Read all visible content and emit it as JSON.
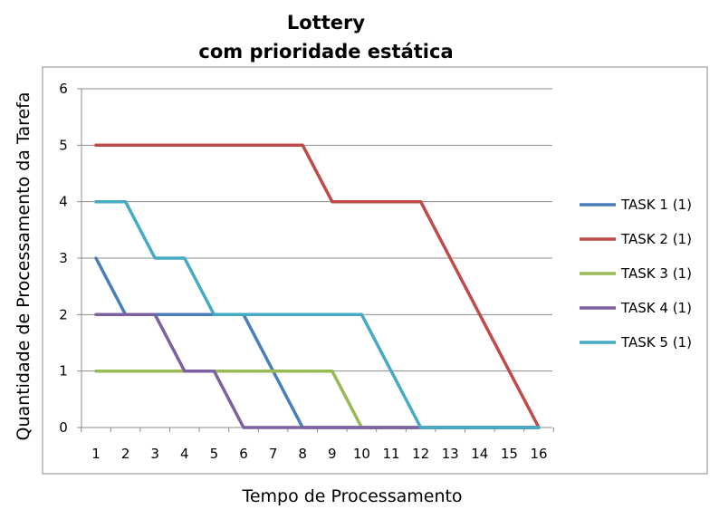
{
  "chart_data": {
    "type": "line",
    "title": "Lottery",
    "subtitle": "com prioridade estática",
    "xlabel": "Tempo de Processamento",
    "ylabel": "Quantidade de Processamento da Tarefa",
    "x": [
      1,
      2,
      3,
      4,
      5,
      6,
      7,
      8,
      9,
      10,
      11,
      12,
      13,
      14,
      15,
      16
    ],
    "xlim": [
      0.5,
      16.5
    ],
    "ylim": [
      0,
      6
    ],
    "yticks": [
      0,
      1,
      2,
      3,
      4,
      5,
      6
    ],
    "grid": true,
    "legend_position": "right",
    "series": [
      {
        "name": "TASK 1 (1)",
        "color": "#4a7ebb",
        "values": [
          3,
          2,
          2,
          2,
          2,
          2,
          1,
          0,
          0,
          0,
          0,
          0,
          0,
          0,
          0,
          0
        ]
      },
      {
        "name": "TASK 2 (1)",
        "color": "#be4b48",
        "values": [
          5,
          5,
          5,
          5,
          5,
          5,
          5,
          5,
          4,
          4,
          4,
          4,
          3,
          2,
          1,
          0
        ]
      },
      {
        "name": "TASK 3 (1)",
        "color": "#98b954",
        "values": [
          1,
          1,
          1,
          1,
          1,
          1,
          1,
          1,
          1,
          0,
          0,
          0,
          0,
          0,
          0,
          0
        ]
      },
      {
        "name": "TASK 4 (1)",
        "color": "#7d60a0",
        "values": [
          2,
          2,
          2,
          1,
          1,
          0,
          0,
          0,
          0,
          0,
          0,
          0,
          0,
          0,
          0,
          0
        ]
      },
      {
        "name": "TASK 5 (1)",
        "color": "#46aac5",
        "values": [
          4,
          4,
          3,
          3,
          2,
          2,
          2,
          2,
          2,
          2,
          1,
          0,
          0,
          0,
          0,
          0
        ]
      }
    ]
  }
}
